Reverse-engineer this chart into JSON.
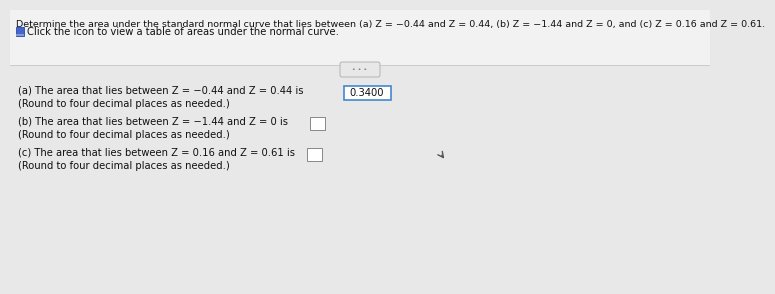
{
  "title": "Determine the area under the standard normal curve that lies between (a) Z = −0.44 and Z = 0.44, (b) Z = −1.44 and Z = 0, and (c) Z = 0.16 and Z = 0.61.",
  "subtitle": "Click the icon to view a table of areas under the normal curve.",
  "part_a_text": "(a) The area that lies between Z = −0.44 and Z = 0.44 is",
  "part_a_answer": "0.3400",
  "part_a_note": "(Round to four decimal places as needed.)",
  "part_b_text": "(b) The area that lies between Z = −1.44 and Z = 0 is",
  "part_b_note": "(Round to four decimal places as needed.)",
  "part_c_text": "(c) The area that lies between Z = 0.16 and Z = 0.61 is",
  "part_c_note": "(Round to four decimal places as needed.)",
  "bg_color": "#e8e8e8",
  "top_bg": "#f0f0f0",
  "bottom_bg": "#e0e0e8",
  "title_fontsize": 6.8,
  "body_fontsize": 7.2,
  "small_fontsize": 6.5,
  "answer_box_color": "#ffffff",
  "answer_a_border": "#4488cc",
  "answer_bc_border": "#888888",
  "icon_color": "#2255aa",
  "icon_bg": "#4466cc"
}
